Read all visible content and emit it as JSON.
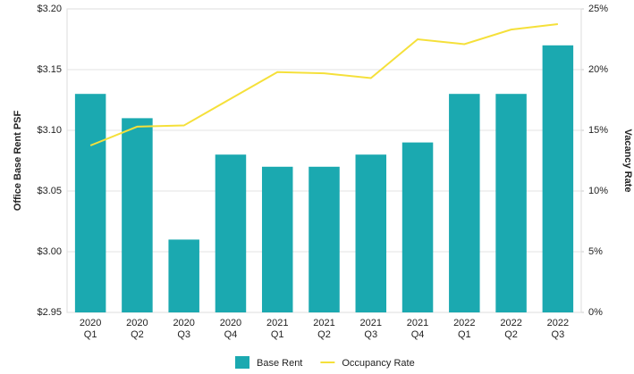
{
  "chart_data": {
    "type": "bar-line",
    "categories": [
      [
        "2020",
        "Q1"
      ],
      [
        "2020",
        "Q2"
      ],
      [
        "2020",
        "Q3"
      ],
      [
        "2020",
        "Q4"
      ],
      [
        "2021",
        "Q1"
      ],
      [
        "2021",
        "Q2"
      ],
      [
        "2021",
        "Q3"
      ],
      [
        "2021",
        "Q4"
      ],
      [
        "2022",
        "Q1"
      ],
      [
        "2022",
        "Q2"
      ],
      [
        "2022",
        "Q3"
      ]
    ],
    "y_label": "Office Base Rent PSF",
    "y2_label": "Vacancy Rate",
    "ylim": [
      2.95,
      3.2
    ],
    "yticks": [
      {
        "value": 2.95,
        "label": "$2.95"
      },
      {
        "value": 3.0,
        "label": "$3.00"
      },
      {
        "value": 3.05,
        "label": "$3.05"
      },
      {
        "value": 3.1,
        "label": "$3.10"
      },
      {
        "value": 3.15,
        "label": "$3.15"
      },
      {
        "value": 3.2,
        "label": "$3.20"
      }
    ],
    "y2lim": [
      0,
      25
    ],
    "y2ticks": [
      {
        "value": 0,
        "label": "0%"
      },
      {
        "value": 5,
        "label": "5%"
      },
      {
        "value": 10,
        "label": "10%"
      },
      {
        "value": 15,
        "label": "15%"
      },
      {
        "value": 20,
        "label": "20%"
      },
      {
        "value": 25,
        "label": "25%"
      }
    ],
    "grid": true,
    "series": [
      {
        "name": "Base Rent",
        "type": "bar",
        "color": "#1ba9b0",
        "values": [
          3.13,
          3.11,
          3.01,
          3.08,
          3.07,
          3.07,
          3.08,
          3.09,
          3.13,
          3.13,
          3.17
        ]
      },
      {
        "name": "Occupancy Rate",
        "type": "line",
        "axis": "y2",
        "color": "#f5e03a",
        "values": [
          13.75,
          15.3,
          15.4,
          17.6,
          19.8,
          19.7,
          19.3,
          22.5,
          22.1,
          23.3,
          23.75
        ]
      }
    ]
  }
}
